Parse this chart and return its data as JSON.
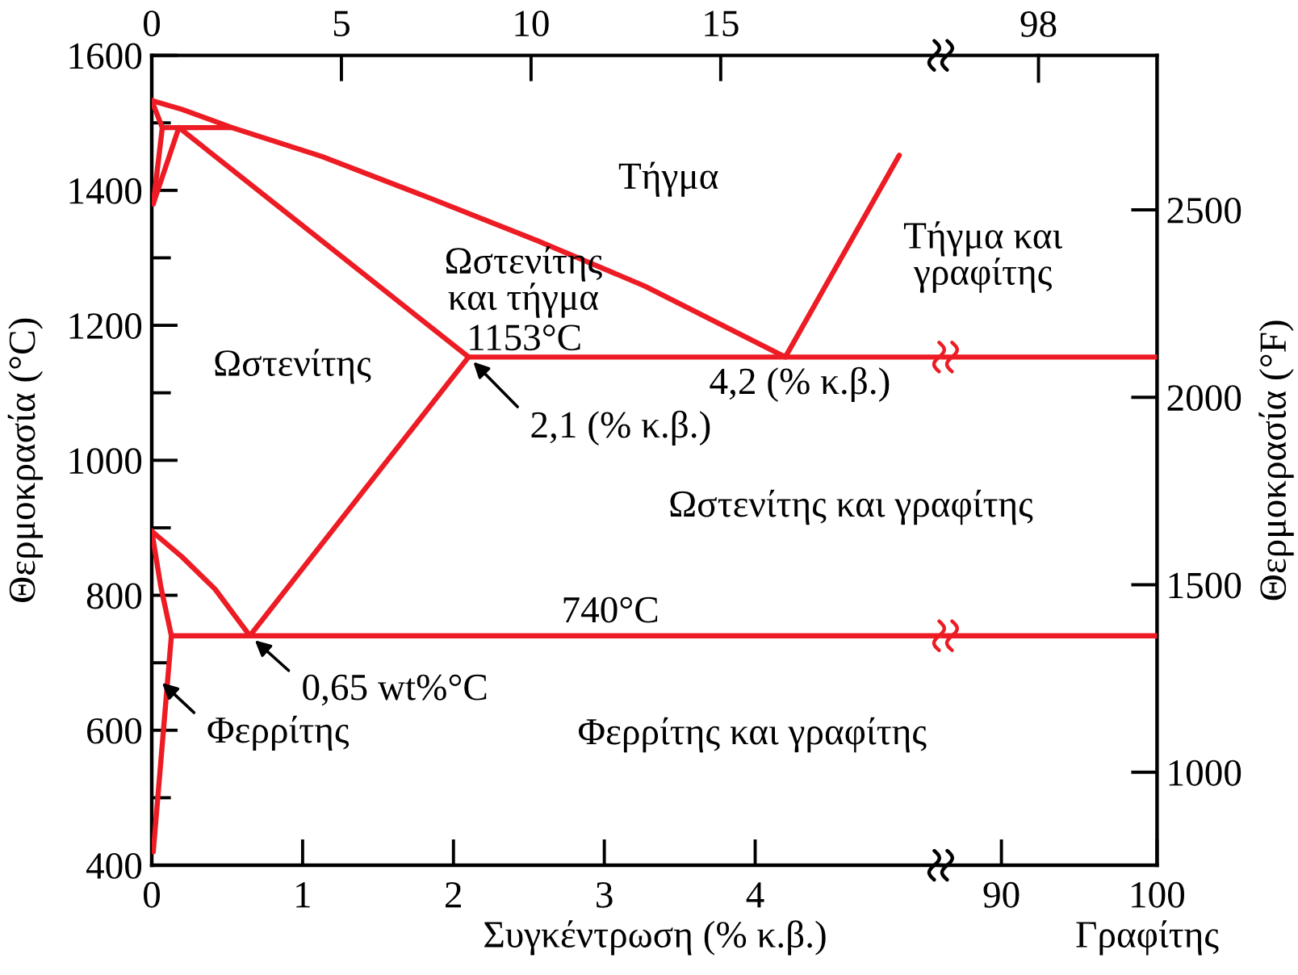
{
  "chart_data": [
    {
      "type": "line",
      "xlabel": "Συγκέντρωση (% κ.β.)",
      "ylabel": "Θερμοκρασία (°C)",
      "xlim": [
        0,
        5.23
      ],
      "xticks": [
        0,
        1,
        2,
        3,
        4
      ],
      "ylim": [
        400,
        1600
      ],
      "yticks": [
        400,
        {
          "value": 500,
          "label": null
        },
        600,
        {
          "value": 700,
          "label": null
        },
        800,
        {
          "value": 900,
          "label": null
        },
        1000,
        {
          "value": 1100,
          "label": null
        },
        1200,
        {
          "value": 1300,
          "label": null
        },
        1400,
        {
          "value": 1500,
          "label": null
        },
        1600
      ],
      "x2lim": [
        0,
        20.8
      ],
      "x2ticks": [
        0,
        5,
        10,
        15
      ],
      "series": [
        {
          "color": "#ed1c24",
          "x": [
            0,
            0.2,
            0.53,
            1.13,
            1.85,
            2.56,
            3.27,
            4.2,
            4.955
          ],
          "values": [
            1533,
            1520,
            1493,
            1450,
            1388,
            1325,
            1258,
            1153,
            1452
          ]
        },
        {
          "color": "#ed1c24",
          "x": [
            0,
            0.07
          ],
          "values": [
            1533,
            1493
          ]
        },
        {
          "color": "#ed1c24",
          "x": [
            0.07,
            0.53
          ],
          "values": [
            1493,
            1493
          ]
        },
        {
          "color": "#ed1c24",
          "x": [
            0.07,
            0.01
          ],
          "values": [
            1493,
            1380
          ]
        },
        {
          "color": "#ed1c24",
          "x": [
            0.18,
            0.01
          ],
          "values": [
            1493,
            1380
          ]
        },
        {
          "color": "#ed1c24",
          "x": [
            0.18,
            2.1
          ],
          "values": [
            1493,
            1153
          ]
        },
        {
          "color": "#ed1c24",
          "x": [
            2.1,
            5.23
          ],
          "values": [
            1153,
            1153
          ]
        },
        {
          "color": "#ed1c24",
          "x": [
            0.65,
            2.1
          ],
          "values": [
            740,
            1153
          ]
        },
        {
          "color": "#ed1c24",
          "x": [
            0,
            0.2,
            0.42,
            0.65
          ],
          "values": [
            895,
            857,
            809,
            740
          ]
        },
        {
          "color": "#ed1c24",
          "x": [
            0,
            0.06,
            0.13,
            0.01
          ],
          "values": [
            895,
            813,
            740,
            420
          ]
        },
        {
          "color": "#ed1c24",
          "x": [
            0.13,
            5.23
          ],
          "values": [
            740,
            740
          ]
        }
      ],
      "annotations": [
        "Τήγμα",
        "Ωστενίτης\nκαι τήγμα",
        {
          "text": "1153°C",
          "x": 2.47,
          "y": 1153
        },
        "Ωστενίτης",
        {
          "text": "2,1 (% κ.β.)",
          "x": 2.1,
          "y": 1153
        },
        {
          "text": "4,2 (% κ.β.)",
          "x": 4.2,
          "y": 1153
        },
        "Ωστενίτης και γραφίτης",
        {
          "text": "740°C",
          "x": 3.04,
          "y": 740
        },
        {
          "text": "0,65 wt%°C",
          "x": 0.65,
          "y": 740
        },
        "Φερρίτης",
        "Φερρίτης και γραφίτης"
      ]
    },
    {
      "type": "line",
      "xlabel": "Γραφίτης",
      "y2label": "Θερμοκρασία (°F)",
      "xlim": [
        86.1,
        100
      ],
      "xticks": [
        90,
        100
      ],
      "ylim": [
        400,
        1600
      ],
      "y2lim": [
        752,
        2912
      ],
      "y2ticks": [
        1000,
        1500,
        2000,
        2500
      ],
      "series": [
        {
          "color": "#ed1c24",
          "x": [
            86.1,
            100
          ],
          "values": [
            1153,
            1153
          ]
        },
        {
          "color": "#ed1c24",
          "x": [
            86.1,
            100
          ],
          "values": [
            740,
            740
          ]
        }
      ],
      "annotations": [
        "Τήγμα και\nγραφίτης",
        "98"
      ]
    }
  ]
}
